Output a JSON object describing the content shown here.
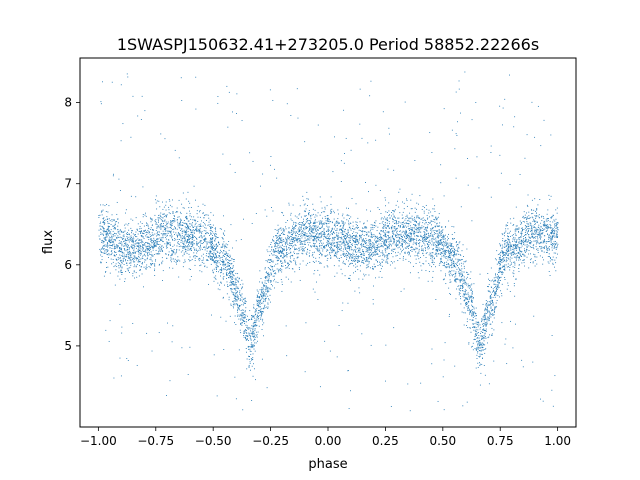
{
  "chart_data": {
    "type": "scatter",
    "title": "1SWASPJ150632.41+273205.0 Period 58852.22266s",
    "xlabel": "phase",
    "ylabel": "flux",
    "xlim": [
      -1.08,
      1.08
    ],
    "ylim": [
      4.0,
      8.55
    ],
    "xticks": [
      -1.0,
      -0.75,
      -0.5,
      -0.25,
      0.0,
      0.25,
      0.5,
      0.75,
      1.0
    ],
    "xtick_labels": [
      "−1.00",
      "−0.75",
      "−0.50",
      "−0.25",
      "0.00",
      "0.25",
      "0.50",
      "0.75",
      "1.00"
    ],
    "yticks": [
      5,
      6,
      7,
      8
    ],
    "ytick_labels": [
      "5",
      "6",
      "7",
      "8"
    ],
    "grid": false,
    "legend": "none",
    "point_color": "#1f77b4",
    "series": [
      {
        "x_range": [
          -1.0,
          1.0
        ],
        "profile": [
          {
            "phase": -1.0,
            "flux": 6.35
          },
          {
            "phase": -0.85,
            "flux": 6.2
          },
          {
            "phase": -0.68,
            "flux": 6.4
          },
          {
            "phase": -0.55,
            "flux": 6.35
          },
          {
            "phase": -0.45,
            "flux": 6.05
          },
          {
            "phase": -0.38,
            "flux": 5.5
          },
          {
            "phase": -0.34,
            "flux": 5.0
          },
          {
            "phase": -0.3,
            "flux": 5.5
          },
          {
            "phase": -0.22,
            "flux": 6.2
          },
          {
            "phase": -0.1,
            "flux": 6.4
          },
          {
            "phase": 0.0,
            "flux": 6.35
          },
          {
            "phase": 0.15,
            "flux": 6.2
          },
          {
            "phase": 0.32,
            "flux": 6.4
          },
          {
            "phase": 0.45,
            "flux": 6.35
          },
          {
            "phase": 0.55,
            "flux": 6.05
          },
          {
            "phase": 0.62,
            "flux": 5.5
          },
          {
            "phase": 0.66,
            "flux": 5.0
          },
          {
            "phase": 0.7,
            "flux": 5.5
          },
          {
            "phase": 0.78,
            "flux": 6.2
          },
          {
            "phase": 0.9,
            "flux": 6.4
          },
          {
            "phase": 1.0,
            "flux": 6.35
          }
        ],
        "scatter_sigma": 0.17,
        "outlier_range": [
          4.2,
          8.4
        ]
      }
    ]
  }
}
